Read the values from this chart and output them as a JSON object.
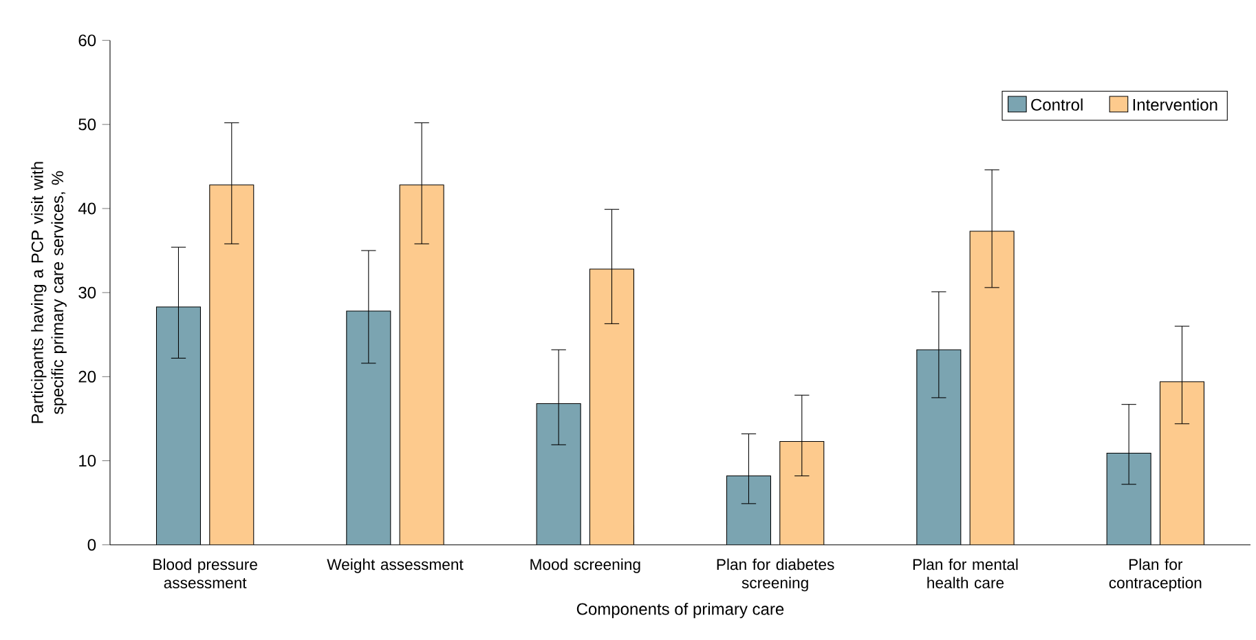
{
  "chart_data": {
    "type": "bar",
    "xlabel": "Components of primary care",
    "ylabel": "Participants having a PCP visit with specific primary care services, %",
    "categories": [
      "Blood pressure assessment",
      "Weight assessment",
      "Mood screening",
      "Plan for diabetes screening",
      "Plan for mental health care",
      "Plan for contraception"
    ],
    "series": [
      {
        "name": "Control",
        "color": "#7ba4b1",
        "values": [
          28.3,
          27.8,
          16.8,
          8.2,
          23.2,
          10.9
        ],
        "errors": [
          [
            22.2,
            35.4
          ],
          [
            21.6,
            35.0
          ],
          [
            11.9,
            23.2
          ],
          [
            4.9,
            13.2
          ],
          [
            17.5,
            30.1
          ],
          [
            7.2,
            16.7
          ]
        ]
      },
      {
        "name": "Intervention",
        "color": "#fdca8d",
        "values": [
          42.8,
          42.8,
          32.8,
          12.3,
          37.3,
          19.4
        ],
        "errors": [
          [
            35.8,
            50.2
          ],
          [
            35.8,
            50.2
          ],
          [
            26.3,
            39.9
          ],
          [
            8.2,
            17.8
          ],
          [
            30.6,
            44.6
          ],
          [
            14.4,
            26.0
          ]
        ]
      }
    ],
    "ylim": [
      0,
      60
    ],
    "yticks": [
      0,
      10,
      20,
      30,
      40,
      50,
      60
    ],
    "grid": false,
    "legend": "top right"
  }
}
